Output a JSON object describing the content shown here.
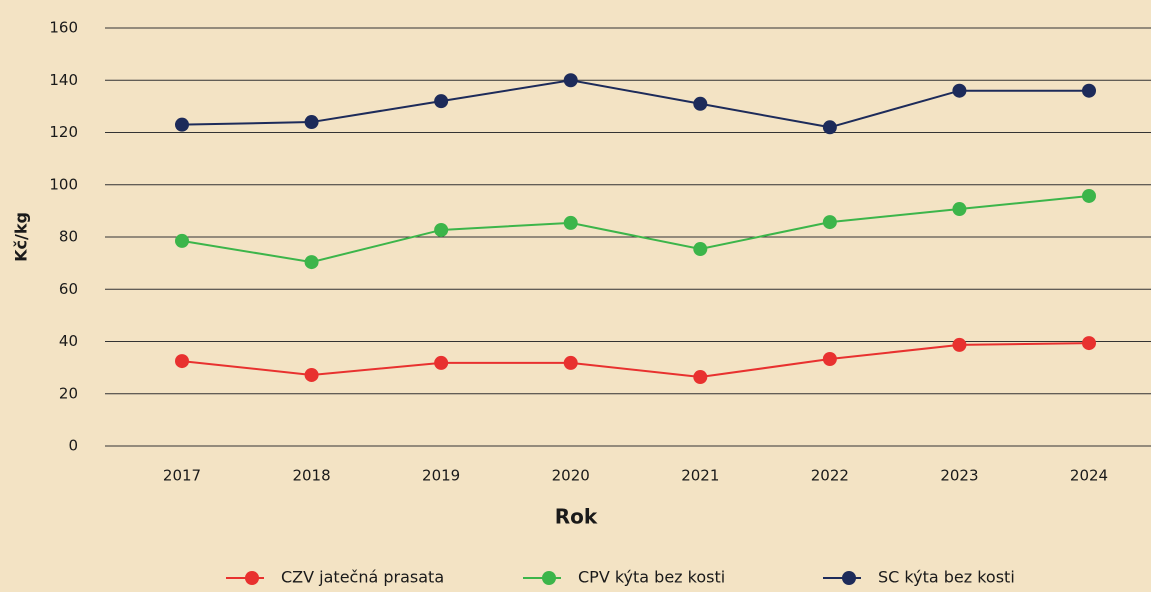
{
  "chart_data": {
    "type": "line",
    "x_label": "Rok",
    "y_label": "Kč/kg",
    "categories": [
      "2017",
      "2018",
      "2019",
      "2020",
      "2021",
      "2022",
      "2023",
      "2024"
    ],
    "series": [
      {
        "name": "CZV jatečná prasata",
        "color": "#e8312f",
        "values": [
          32.5,
          27.2,
          31.8,
          31.8,
          26.4,
          33.3,
          38.7,
          39.4
        ]
      },
      {
        "name": "CPV kýta bez kosti",
        "color": "#3cb54a",
        "values": [
          78.5,
          70.4,
          82.7,
          85.4,
          75.4,
          85.7,
          90.7,
          95.7
        ]
      },
      {
        "name": "SC kýta bez kosti",
        "color": "#1d2b5a",
        "values": [
          123,
          124,
          132,
          140,
          131,
          122,
          136,
          136
        ]
      }
    ],
    "ylim": [
      0,
      160
    ],
    "yticks": [
      0,
      20,
      40,
      60,
      80,
      100,
      120,
      140,
      160
    ],
    "grid": true,
    "legend": "bottom"
  }
}
